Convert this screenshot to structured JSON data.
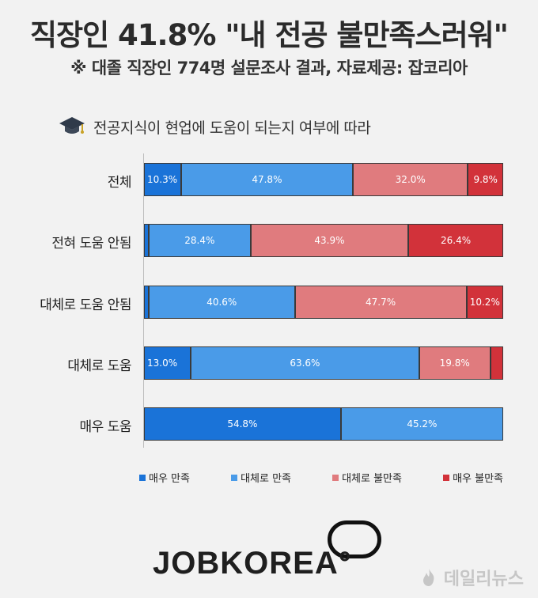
{
  "header": {
    "title": "직장인 41.8% \"내 전공 불만족스러워\"",
    "subtitle": "※ 대졸 직장인  774명 설문조사 결과,  자료제공: 잡코리아"
  },
  "section": {
    "label": "전공지식이 현업에 도움이 되는지 여부에 따라",
    "icon": "graduation-cap-icon"
  },
  "chart_data": {
    "type": "bar",
    "orientation": "horizontal",
    "stacked": true,
    "percent": true,
    "categories": [
      "전체",
      "전혀 도움 안됨",
      "대체로 도움 안됨",
      "대체로 도움",
      "매우 도움"
    ],
    "series": [
      {
        "name": "매우 만족",
        "color": "#1a73d8",
        "values": [
          10.3,
          1.3,
          1.3,
          13.0,
          54.8
        ],
        "labels": [
          "10.3%",
          "",
          "",
          "13.0%",
          "54.8%"
        ]
      },
      {
        "name": "대체로 만족",
        "color": "#4a9be8",
        "values": [
          47.8,
          28.4,
          40.6,
          63.6,
          45.2
        ],
        "labels": [
          "47.8%",
          "28.4%",
          "40.6%",
          "63.6%",
          "45.2%"
        ]
      },
      {
        "name": "대체로 불만족",
        "color": "#e07b7e",
        "values": [
          32.0,
          43.9,
          47.7,
          19.8,
          0
        ],
        "labels": [
          "32.0%",
          "43.9%",
          "47.7%",
          "19.8%",
          ""
        ]
      },
      {
        "name": "매우 불만족",
        "color": "#d2323a",
        "values": [
          9.8,
          26.4,
          10.2,
          3.6,
          0
        ],
        "labels": [
          "9.8%",
          "26.4%",
          "10.2%",
          "",
          ""
        ]
      }
    ],
    "xlim": [
      0,
      100
    ],
    "legend_position": "bottom"
  },
  "footer": {
    "logo": "JOBKOREA",
    "logo_mark": "°",
    "watermark": "데일리뉴스"
  }
}
